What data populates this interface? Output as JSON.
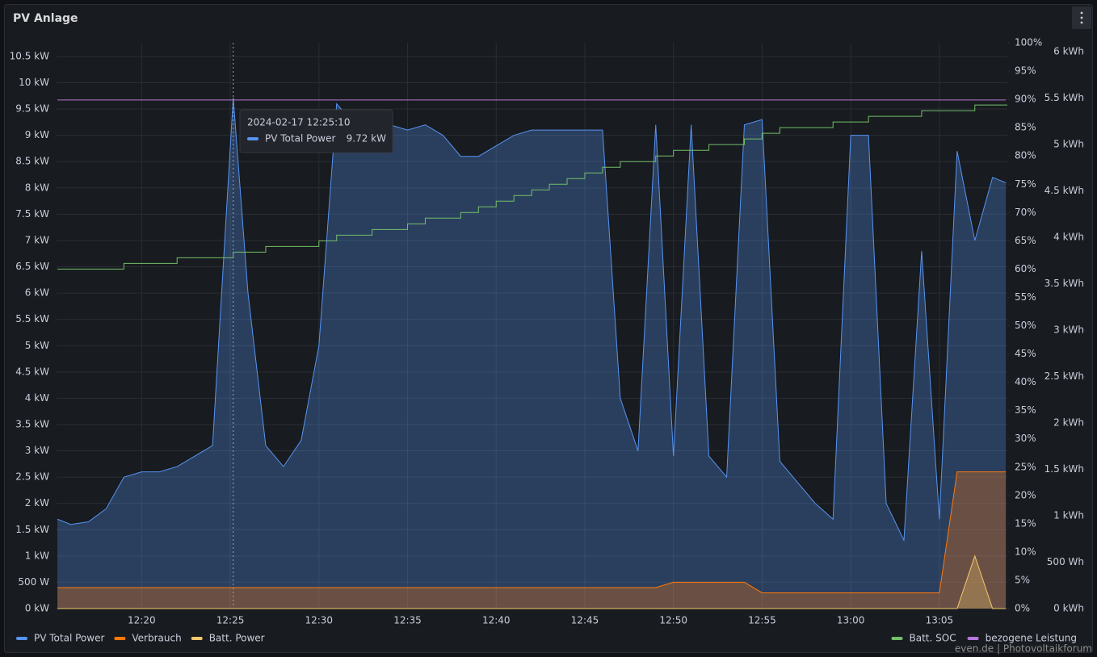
{
  "chart_data": {
    "type": "timeseries",
    "title": "PV Anlage",
    "x": [
      "12:15:15",
      "12:16:00",
      "12:17:00",
      "12:18:00",
      "12:19:00",
      "12:20:00",
      "12:21:00",
      "12:22:00",
      "12:23:00",
      "12:24:00",
      "12:25:10",
      "12:26:00",
      "12:27:00",
      "12:28:00",
      "12:29:00",
      "12:30:00",
      "12:31:00",
      "12:32:00",
      "12:33:00",
      "12:34:00",
      "12:35:00",
      "12:36:00",
      "12:37:00",
      "12:38:00",
      "12:39:00",
      "12:40:00",
      "12:41:00",
      "12:42:00",
      "12:43:00",
      "12:44:00",
      "12:45:00",
      "12:46:00",
      "12:47:00",
      "12:48:00",
      "12:49:00",
      "12:50:00",
      "12:51:00",
      "12:52:00",
      "12:53:00",
      "12:54:00",
      "12:55:00",
      "12:56:00",
      "12:57:00",
      "12:58:00",
      "12:59:00",
      "13:00:00",
      "13:01:00",
      "13:02:00",
      "13:03:00",
      "13:04:00",
      "13:05:00",
      "13:06:00",
      "13:07:00",
      "13:08:00",
      "13:08:45"
    ],
    "xlim": [
      "12:15:12",
      "13:08:50"
    ],
    "xticks": [
      "12:20",
      "12:25",
      "12:30",
      "12:35",
      "12:40",
      "12:45",
      "12:50",
      "12:55",
      "13:00",
      "13:05"
    ],
    "ylim": [
      0,
      10760
    ],
    "yticks": [
      {
        "value": 0,
        "label": "0 kW"
      },
      {
        "value": 500,
        "label": "500 W"
      },
      {
        "value": 1000,
        "label": "1 kW"
      },
      {
        "value": 1500,
        "label": "1.5 kW"
      },
      {
        "value": 2000,
        "label": "2 kW"
      },
      {
        "value": 2500,
        "label": "2.5 kW"
      },
      {
        "value": 3000,
        "label": "3 kW"
      },
      {
        "value": 3500,
        "label": "3.5 kW"
      },
      {
        "value": 4000,
        "label": "4 kW"
      },
      {
        "value": 4500,
        "label": "4.5 kW"
      },
      {
        "value": 5000,
        "label": "5 kW"
      },
      {
        "value": 5500,
        "label": "5.5 kW"
      },
      {
        "value": 6000,
        "label": "6 kW"
      },
      {
        "value": 6500,
        "label": "6.5 kW"
      },
      {
        "value": 7000,
        "label": "7 kW"
      },
      {
        "value": 7500,
        "label": "7.5 kW"
      },
      {
        "value": 8000,
        "label": "8 kW"
      },
      {
        "value": 8500,
        "label": "8.5 kW"
      },
      {
        "value": 9000,
        "label": "9 kW"
      },
      {
        "value": 9500,
        "label": "9.5 kW"
      },
      {
        "value": 10000,
        "label": "10 kW"
      },
      {
        "value": 10500,
        "label": "10.5 kW"
      }
    ],
    "y2lim": [
      0,
      100
    ],
    "y2ticks": [
      {
        "value": 0,
        "label": "0%"
      },
      {
        "value": 5,
        "label": "5%"
      },
      {
        "value": 10,
        "label": "10%"
      },
      {
        "value": 15,
        "label": "15%"
      },
      {
        "value": 20,
        "label": "20%"
      },
      {
        "value": 25,
        "label": "25%"
      },
      {
        "value": 30,
        "label": "30%"
      },
      {
        "value": 35,
        "label": "35%"
      },
      {
        "value": 40,
        "label": "40%"
      },
      {
        "value": 45,
        "label": "45%"
      },
      {
        "value": 50,
        "label": "50%"
      },
      {
        "value": 55,
        "label": "55%"
      },
      {
        "value": 60,
        "label": "60%"
      },
      {
        "value": 65,
        "label": "65%"
      },
      {
        "value": 70,
        "label": "70%"
      },
      {
        "value": 75,
        "label": "75%"
      },
      {
        "value": 80,
        "label": "80%"
      },
      {
        "value": 85,
        "label": "85%"
      },
      {
        "value": 90,
        "label": "90%"
      },
      {
        "value": 95,
        "label": "95%"
      },
      {
        "value": 100,
        "label": "100%"
      }
    ],
    "y3lim": [
      0,
      6096
    ],
    "y3ticks": [
      {
        "value": 0,
        "label": "0 kWh"
      },
      {
        "value": 500,
        "label": "500 Wh"
      },
      {
        "value": 1000,
        "label": "1 kWh"
      },
      {
        "value": 1500,
        "label": "1.5 kWh"
      },
      {
        "value": 2000,
        "label": "2 kWh"
      },
      {
        "value": 2500,
        "label": "2.5 kWh"
      },
      {
        "value": 3000,
        "label": "3 kWh"
      },
      {
        "value": 3500,
        "label": "3.5 kWh"
      },
      {
        "value": 4000,
        "label": "4 kWh"
      },
      {
        "value": 4500,
        "label": "4.5 kWh"
      },
      {
        "value": 5000,
        "label": "5 kWh"
      },
      {
        "value": 5500,
        "label": "5.5 kWh"
      },
      {
        "value": 6000,
        "label": "6 kWh"
      }
    ],
    "grid": true,
    "series": [
      {
        "name": "PV Total Power",
        "color": "#5794f2",
        "style": "area",
        "values": [
          1700,
          1600,
          1650,
          1900,
          2500,
          2600,
          2600,
          2700,
          2900,
          3100,
          9720,
          6000,
          3100,
          2700,
          3200,
          5000,
          9600,
          9200,
          9300,
          9200,
          9100,
          9200,
          9000,
          8600,
          8600,
          8800,
          9000,
          9100,
          9100,
          9100,
          9100,
          9100,
          4000,
          3000,
          9200,
          2900,
          9200,
          2900,
          2500,
          9200,
          9300,
          2800,
          2400,
          2000,
          1700,
          9000,
          9000,
          2000,
          1300,
          6800,
          1700,
          8700,
          7000,
          8200,
          8100
        ]
      },
      {
        "name": "Verbrauch",
        "color": "#ff780a",
        "style": "area",
        "values": [
          400,
          400,
          400,
          400,
          400,
          400,
          400,
          400,
          400,
          400,
          400,
          400,
          400,
          400,
          400,
          400,
          400,
          400,
          400,
          400,
          400,
          400,
          400,
          400,
          400,
          400,
          400,
          400,
          400,
          400,
          400,
          400,
          400,
          400,
          400,
          500,
          500,
          500,
          500,
          500,
          300,
          300,
          300,
          300,
          300,
          300,
          300,
          300,
          300,
          300,
          300,
          2600,
          2600,
          2600,
          2600
        ]
      },
      {
        "name": "Batt. Power",
        "color": "#f2c96d",
        "style": "area",
        "values": [
          0,
          0,
          0,
          0,
          0,
          0,
          0,
          0,
          0,
          0,
          0,
          0,
          0,
          0,
          0,
          0,
          0,
          0,
          0,
          0,
          0,
          0,
          0,
          0,
          0,
          0,
          0,
          0,
          0,
          0,
          0,
          0,
          0,
          0,
          0,
          0,
          0,
          0,
          0,
          0,
          0,
          0,
          0,
          0,
          0,
          0,
          0,
          0,
          0,
          0,
          0,
          0,
          1000,
          0,
          0
        ]
      },
      {
        "name": "Batt. SOC",
        "color": "#73bf69",
        "style": "step",
        "axis": "y2",
        "values": [
          60,
          60,
          60,
          60,
          61,
          61,
          61,
          62,
          62,
          62,
          63,
          63,
          64,
          64,
          64,
          65,
          66,
          66,
          67,
          67,
          68,
          69,
          69,
          70,
          71,
          72,
          73,
          74,
          75,
          76,
          77,
          78,
          79,
          79,
          80,
          81,
          81,
          82,
          82,
          83,
          84,
          85,
          85,
          85,
          86,
          86,
          87,
          87,
          87,
          88,
          88,
          88,
          89,
          89,
          89
        ]
      },
      {
        "name": "bezogene Leistung",
        "color": "#b877d9",
        "style": "line",
        "axis": "y3",
        "values": [
          5480,
          5480,
          5480,
          5480,
          5480,
          5480,
          5480,
          5480,
          5480,
          5480,
          5480,
          5480,
          5480,
          5480,
          5480,
          5480,
          5480,
          5480,
          5480,
          5480,
          5480,
          5480,
          5480,
          5480,
          5480,
          5480,
          5480,
          5480,
          5480,
          5480,
          5480,
          5480,
          5480,
          5480,
          5480,
          5480,
          5480,
          5480,
          5480,
          5480,
          5480,
          5480,
          5480,
          5480,
          5480,
          5480,
          5480,
          5480,
          5480,
          5480,
          5480,
          5480,
          5480,
          5480,
          5480
        ]
      }
    ],
    "tooltip": {
      "time": "2024-02-17 12:25:10",
      "series": "PV Total Power",
      "value": "9.72 kW"
    },
    "watermark": "even.de | Photovoltaikforum"
  }
}
